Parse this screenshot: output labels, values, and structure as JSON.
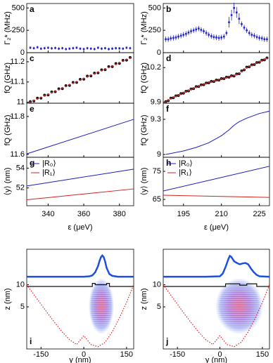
{
  "chart_data": [
    {
      "type": "scatter",
      "label": "a",
      "ylabel": "Γ₂* (MHz)",
      "xlim": [
        328,
        388
      ],
      "ylim": [
        0,
        550
      ],
      "yticks": [
        0,
        250,
        500
      ],
      "series": [
        {
          "color": "#2424c8",
          "marker": "square",
          "x": [
            330,
            332,
            334,
            336,
            338,
            340,
            342,
            344,
            346,
            348,
            350,
            352,
            354,
            356,
            358,
            360,
            362,
            364,
            366,
            368,
            370,
            372,
            374,
            376,
            378,
            380,
            382,
            384,
            386
          ],
          "values": [
            55,
            50,
            60,
            45,
            50,
            55,
            48,
            52,
            45,
            50,
            40,
            45,
            50,
            55,
            45,
            40,
            50,
            45,
            40,
            55,
            45,
            50,
            40,
            45,
            50,
            48,
            45,
            55,
            50
          ],
          "errors": [
            15,
            15,
            15,
            15,
            15,
            15,
            15,
            15,
            15,
            15,
            15,
            15,
            15,
            15,
            15,
            15,
            15,
            15,
            15,
            15,
            15,
            15,
            15,
            15,
            15,
            15,
            15,
            15,
            15
          ]
        }
      ]
    },
    {
      "type": "scatter",
      "label": "b",
      "ylabel": "Γ₂* (MHz)",
      "xlim": [
        187,
        229
      ],
      "ylim": [
        0,
        550
      ],
      "yticks": [
        0,
        250,
        500
      ],
      "series": [
        {
          "color": "#2424c8",
          "marker": "square",
          "x": [
            188,
            189,
            190,
            191,
            192,
            193,
            194,
            195,
            196,
            197,
            198,
            199,
            200,
            201,
            202,
            203,
            204,
            205,
            206,
            207,
            208,
            209,
            210,
            211,
            212,
            213,
            214,
            215,
            216,
            217,
            218,
            219,
            220,
            221,
            222,
            223,
            224,
            225,
            226,
            227,
            228
          ],
          "values": [
            150,
            150,
            160,
            165,
            170,
            180,
            190,
            200,
            210,
            225,
            240,
            250,
            260,
            270,
            255,
            240,
            220,
            200,
            185,
            175,
            170,
            165,
            170,
            180,
            220,
            340,
            420,
            500,
            450,
            380,
            320,
            280,
            250,
            220,
            200,
            190,
            175,
            165,
            160,
            150,
            150
          ],
          "errors": [
            30,
            30,
            30,
            30,
            30,
            30,
            30,
            30,
            30,
            30,
            30,
            30,
            30,
            30,
            30,
            30,
            30,
            30,
            30,
            30,
            30,
            30,
            30,
            30,
            30,
            60,
            60,
            60,
            60,
            60,
            30,
            30,
            30,
            30,
            30,
            30,
            30,
            30,
            30,
            30,
            30
          ]
        }
      ]
    },
    {
      "type": "scatter",
      "label": "c",
      "ylabel": "fQ (GHz)",
      "xlim": [
        328,
        388
      ],
      "ylim": [
        10.995,
        11.245
      ],
      "yticks": [
        11,
        11.1,
        11.2
      ],
      "series": [
        {
          "color": "#111111",
          "marker": "circle",
          "x": [
            330,
            332,
            334,
            336,
            338,
            340,
            342,
            344,
            346,
            348,
            350,
            352,
            354,
            356,
            358,
            360,
            362,
            364,
            366,
            368,
            370,
            372,
            374,
            376,
            378,
            380,
            382,
            384,
            386
          ],
          "values": [
            11.003,
            11.006,
            11.02,
            11.02,
            11.035,
            11.036,
            11.051,
            11.052,
            11.066,
            11.067,
            11.082,
            11.083,
            11.098,
            11.098,
            11.113,
            11.114,
            11.129,
            11.13,
            11.144,
            11.145,
            11.16,
            11.161,
            11.176,
            11.176,
            11.191,
            11.192,
            11.207,
            11.208,
            11.221
          ]
        },
        {
          "color": "#d42020",
          "marker": "dot",
          "x": [
            330,
            332,
            334,
            336,
            338,
            340,
            342,
            344,
            346,
            348,
            350,
            352,
            354,
            356,
            358,
            360,
            362,
            364,
            366,
            368,
            370,
            372,
            374,
            376,
            378,
            380,
            382,
            384,
            386
          ],
          "values": [
            11.0,
            11.008,
            11.016,
            11.023,
            11.031,
            11.039,
            11.047,
            11.055,
            11.062,
            11.07,
            11.078,
            11.086,
            11.094,
            11.101,
            11.109,
            11.117,
            11.125,
            11.133,
            11.14,
            11.148,
            11.156,
            11.164,
            11.172,
            11.179,
            11.187,
            11.195,
            11.203,
            11.211,
            11.218
          ]
        }
      ]
    },
    {
      "type": "scatter",
      "label": "d",
      "ylabel": "fQ (GHz)",
      "xlim": [
        187,
        229
      ],
      "ylim": [
        9.89,
        10.33
      ],
      "yticks": [
        9.9,
        10.2
      ],
      "series": [
        {
          "color": "#111111",
          "marker": "circle",
          "x": [
            188,
            189,
            190,
            191,
            192,
            193,
            194,
            195,
            196,
            197,
            198,
            199,
            200,
            201,
            202,
            203,
            204,
            205,
            206,
            207,
            208,
            209,
            210,
            211,
            212,
            213,
            214,
            215,
            216,
            217,
            218,
            219,
            220,
            221,
            222,
            223,
            224,
            225,
            226,
            227,
            228
          ],
          "values": [
            9.904,
            9.912,
            9.934,
            9.937,
            9.954,
            9.957,
            9.974,
            9.977,
            9.994,
            9.997,
            10.014,
            10.017,
            10.034,
            10.035,
            10.05,
            10.051,
            10.066,
            10.067,
            10.08,
            10.079,
            10.092,
            10.091,
            10.104,
            10.104,
            10.117,
            10.117,
            10.129,
            10.127,
            10.144,
            10.147,
            10.171,
            10.18,
            10.204,
            10.207,
            10.224,
            10.227,
            10.244,
            10.247,
            10.264,
            10.267,
            10.284
          ]
        },
        {
          "color": "#d42020",
          "marker": "dot",
          "x": [
            188,
            189,
            190,
            191,
            192,
            193,
            194,
            195,
            196,
            197,
            198,
            199,
            200,
            201,
            202,
            203,
            204,
            205,
            206,
            207,
            208,
            209,
            210,
            211,
            212,
            213,
            214,
            215,
            216,
            217,
            218,
            219,
            220,
            221,
            222,
            223,
            224,
            225,
            226,
            227,
            228
          ],
          "values": [
            9.9,
            9.915,
            9.93,
            9.94,
            9.95,
            9.96,
            9.97,
            9.98,
            9.99,
            10.0,
            10.01,
            10.02,
            10.03,
            10.038,
            10.046,
            10.054,
            10.062,
            10.07,
            10.076,
            10.082,
            10.088,
            10.094,
            10.1,
            10.107,
            10.113,
            10.12,
            10.125,
            10.13,
            10.14,
            10.15,
            10.167,
            10.183,
            10.2,
            10.21,
            10.22,
            10.23,
            10.24,
            10.25,
            10.26,
            10.27,
            10.28
          ]
        }
      ]
    },
    {
      "type": "line",
      "label": "e",
      "ylabel": "fQ (GHz)",
      "xlim": [
        328,
        388
      ],
      "ylim": [
        11.585,
        11.87
      ],
      "yticks": [
        11.6,
        11.8
      ],
      "series": [
        {
          "color": "#1c1cc0",
          "x": [
            328,
            388
          ],
          "values": [
            11.603,
            11.785
          ]
        }
      ]
    },
    {
      "type": "line",
      "label": "f",
      "ylabel": "fQ (GHz)",
      "xlim": [
        187,
        229
      ],
      "ylim": [
        8.976,
        9.438
      ],
      "yticks": [
        9,
        9.3
      ],
      "series": [
        {
          "color": "#1c1cc0",
          "x": [
            188,
            195,
            200,
            205,
            210,
            213,
            215,
            217,
            220,
            225,
            229
          ],
          "values": [
            9.0,
            9.03,
            9.06,
            9.1,
            9.16,
            9.21,
            9.25,
            9.28,
            9.31,
            9.35,
            9.37
          ]
        }
      ]
    },
    {
      "type": "line",
      "label": "g",
      "ylabel": "⟨y⟩ (nm)",
      "xlabel": "ε (μeV)",
      "xlim": [
        328,
        388
      ],
      "ylim": [
        50.2,
        55.1
      ],
      "yticks": [
        52,
        54
      ],
      "xticks": [
        340,
        360,
        380
      ],
      "legend": "upper left",
      "series": [
        {
          "name": "|R₀⟩",
          "color": "#1c1cc0",
          "x": [
            328,
            388
          ],
          "values": [
            52.2,
            53.9
          ]
        },
        {
          "name": "|R₁⟩",
          "color": "#d42020",
          "x": [
            328,
            388
          ],
          "values": [
            50.8,
            51.9
          ]
        }
      ]
    },
    {
      "type": "line",
      "label": "h",
      "ylabel": "⟨y⟩ (nm)",
      "xlabel": "ε (μeV)",
      "xlim": [
        187,
        229
      ],
      "ylim": [
        62.75,
        80
      ],
      "yticks": [
        65,
        75
      ],
      "xticks": [
        195,
        210,
        225
      ],
      "legend": "upper left",
      "series": [
        {
          "name": "|R₀⟩",
          "color": "#1c1cc0",
          "x": [
            187,
            229
          ],
          "values": [
            68,
            76.8
          ]
        },
        {
          "name": "|R₁⟩",
          "color": "#d42020",
          "x": [
            187,
            229
          ],
          "values": [
            66.5,
            65.7
          ]
        }
      ]
    },
    {
      "type": "line",
      "label": "i",
      "ylabel": "z (nm)",
      "xlabel": "y (nm)",
      "xlim": [
        -200,
        175
      ],
      "ylim": [
        -4.5,
        18
      ],
      "yticks": [
        5,
        10
      ],
      "xticks": [
        -150,
        0,
        150
      ],
      "series": [
        {
          "color": "#1c4fe0",
          "width": 2.5,
          "x": [
            -200,
            -100,
            0,
            20,
            30,
            40,
            50,
            55,
            60,
            65,
            70,
            75,
            80,
            90,
            100,
            120,
            175
          ],
          "values": [
            11.8,
            11.8,
            11.8,
            11.9,
            12.1,
            12.8,
            14.2,
            15.3,
            16.2,
            16.6,
            16.2,
            15.2,
            13.8,
            12.4,
            12.0,
            11.8,
            11.8
          ]
        },
        {
          "color": "#111111",
          "width": 1.2,
          "x": [
            -200,
            30,
            30,
            40,
            40,
            80,
            80,
            90,
            90,
            175
          ],
          "values": [
            9.6,
            9.6,
            10.3,
            10.3,
            10.0,
            10.0,
            10.3,
            10.3,
            9.6,
            9.6
          ]
        },
        {
          "color": "#e02020",
          "width": 1.2,
          "linestyle": "dotted",
          "x": [
            -200,
            -175,
            -150,
            -125,
            -100,
            -75,
            -50,
            -25,
            0,
            25,
            50,
            75,
            100,
            125,
            150,
            175
          ],
          "values": [
            10,
            7.8,
            5.6,
            3.4,
            1.3,
            -0.7,
            -2.4,
            -3.5,
            -1.5,
            -3.5,
            -4,
            -3,
            -0.6,
            2.5,
            6,
            10
          ]
        }
      ]
    },
    {
      "type": "line",
      "label": "j",
      "ylabel": "z (nm)",
      "xlabel": "y (nm)",
      "xlim": [
        -200,
        175
      ],
      "ylim": [
        -4.5,
        18
      ],
      "yticks": [
        5,
        10
      ],
      "xticks": [
        -150,
        0,
        150
      ],
      "series": [
        {
          "color": "#1c4fe0",
          "width": 2.5,
          "x": [
            -200,
            -50,
            0,
            10,
            20,
            30,
            35,
            40,
            50,
            60,
            70,
            80,
            90,
            100,
            110,
            120,
            130,
            140,
            175
          ],
          "values": [
            11.8,
            11.8,
            11.9,
            12.5,
            14.0,
            15.8,
            16.5,
            16.3,
            15.3,
            14.9,
            14.6,
            14.8,
            14.9,
            14.6,
            13.6,
            12.8,
            12.2,
            11.9,
            11.8
          ]
        },
        {
          "color": "#111111",
          "width": 1.2,
          "x": [
            -200,
            20,
            20,
            70,
            70,
            95,
            95,
            130,
            130,
            175
          ],
          "values": [
            9.6,
            9.6,
            10.2,
            10.2,
            9.9,
            9.9,
            10.2,
            10.2,
            9.6,
            9.6
          ]
        },
        {
          "color": "#e02020",
          "width": 1.2,
          "linestyle": "dotted",
          "x": [
            -200,
            -175,
            -150,
            -125,
            -100,
            -75,
            -50,
            -25,
            0,
            25,
            50,
            75,
            100,
            125,
            150,
            175
          ],
          "values": [
            10,
            7.8,
            5.6,
            3.4,
            1.3,
            -0.7,
            -2.4,
            -3.5,
            -1.5,
            -3.5,
            -4,
            -3,
            -0.6,
            2.5,
            6,
            10
          ]
        }
      ]
    }
  ]
}
